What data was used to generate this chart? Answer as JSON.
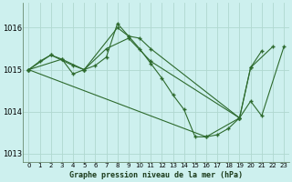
{
  "title": "Graphe pression niveau de la mer (hPa)",
  "background_color": "#cdf0ee",
  "grid_color": "#b0d8d0",
  "line_color": "#2d6a2d",
  "marker_color": "#2d6a2d",
  "xlim": [
    -0.5,
    23.5
  ],
  "ylim": [
    1012.8,
    1016.6
  ],
  "xticks": [
    0,
    1,
    2,
    3,
    4,
    5,
    6,
    7,
    8,
    9,
    10,
    11,
    12,
    13,
    14,
    15,
    16,
    17,
    18,
    19,
    20,
    21,
    22,
    23
  ],
  "yticks": [
    1013,
    1014,
    1015,
    1016
  ],
  "multi_lines": [
    {
      "x": [
        0,
        1,
        2,
        3,
        4,
        5,
        6,
        7,
        8,
        9,
        10,
        11,
        12,
        13,
        14,
        15,
        16,
        17,
        18,
        19
      ],
      "y": [
        1015.0,
        1015.2,
        1015.35,
        1015.25,
        1014.9,
        1015.0,
        1015.1,
        1015.3,
        1016.1,
        1015.8,
        1015.5,
        1015.15,
        1014.8,
        1014.4,
        1014.05,
        1013.4,
        1013.4,
        1013.45,
        1013.6,
        1013.85
      ]
    },
    {
      "x": [
        0,
        3,
        5,
        8,
        9,
        10,
        11,
        19,
        20,
        21
      ],
      "y": [
        1015.0,
        1015.25,
        1015.0,
        1016.0,
        1015.8,
        1015.75,
        1015.5,
        1013.85,
        1015.05,
        1015.45
      ]
    },
    {
      "x": [
        0,
        2,
        4,
        5,
        7,
        9,
        11,
        19,
        20,
        22
      ],
      "y": [
        1015.0,
        1015.35,
        1015.1,
        1015.0,
        1015.5,
        1015.75,
        1015.2,
        1013.85,
        1015.05,
        1015.55
      ]
    },
    {
      "x": [
        0,
        16,
        19,
        20,
        21,
        23
      ],
      "y": [
        1015.0,
        1013.4,
        1013.85,
        1014.25,
        1013.9,
        1015.55
      ]
    }
  ]
}
